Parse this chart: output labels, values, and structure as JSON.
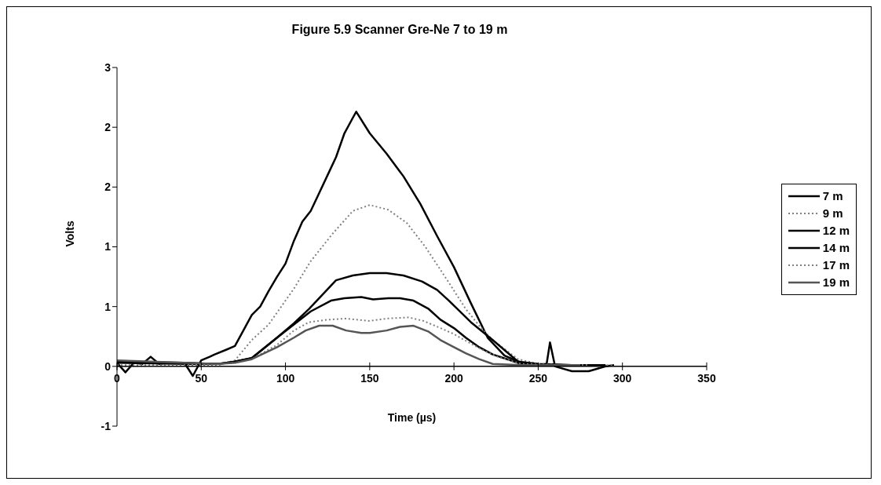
{
  "chart_data": {
    "type": "line",
    "title": "Figure 5.9 Scanner Gre-Ne 7 to 19 m",
    "xlabel": "Time (µs)",
    "ylabel": "Volts",
    "xlim": [
      0,
      350
    ],
    "xticks": [
      0,
      50,
      100,
      150,
      200,
      250,
      300,
      350
    ],
    "ylim": [
      -0.5,
      2.5
    ],
    "yticks": [
      {
        "value": -0.5,
        "label": "-1"
      },
      0,
      {
        "value": 0.5,
        "label": "1"
      },
      1,
      {
        "value": 1.5,
        "label": "2"
      },
      2,
      {
        "value": 2.5,
        "label": "3"
      }
    ],
    "grid": false,
    "legend": "right",
    "marker": "none",
    "series": [
      {
        "name": "7 m",
        "color": "#000000",
        "line_style": "solid",
        "x": [
          0,
          5,
          10,
          15,
          20,
          25,
          30,
          40,
          45,
          50,
          55,
          58,
          65,
          70,
          75,
          80,
          85,
          90,
          95,
          100,
          105,
          110,
          115,
          120,
          125,
          130,
          135,
          140,
          142,
          150,
          160,
          170,
          180,
          190,
          200,
          210,
          220,
          230,
          240,
          250,
          255,
          257,
          260,
          270,
          280,
          290,
          295
        ],
        "values": [
          0.03,
          -0.05,
          0.03,
          0.02,
          0.08,
          0.02,
          0.03,
          0.03,
          -0.08,
          0.05,
          0.08,
          0.1,
          0.14,
          0.17,
          0.3,
          0.43,
          0.5,
          0.63,
          0.75,
          0.86,
          1.05,
          1.21,
          1.3,
          1.45,
          1.6,
          1.75,
          1.95,
          2.08,
          2.13,
          1.95,
          1.78,
          1.59,
          1.36,
          1.09,
          0.83,
          0.53,
          0.24,
          0.09,
          0.03,
          0.01,
          0.02,
          0.2,
          0.0,
          -0.04,
          -0.04,
          0.0,
          0.01
        ]
      },
      {
        "name": "9 m",
        "color": "#808080",
        "line_style": "dotted",
        "x": [
          0,
          40,
          60,
          70,
          80,
          90,
          105,
          115,
          128,
          140,
          150,
          161,
          172,
          183,
          197,
          207,
          215,
          223,
          238,
          250,
          270,
          295
        ],
        "values": [
          0.01,
          0.01,
          0.01,
          0.05,
          0.22,
          0.35,
          0.65,
          0.88,
          1.11,
          1.3,
          1.35,
          1.31,
          1.2,
          1.0,
          0.7,
          0.48,
          0.34,
          0.22,
          0.06,
          0.02,
          0.01,
          0.01
        ]
      },
      {
        "name": "12 m",
        "color": "#000000",
        "line_style": "solid",
        "x": [
          0,
          40,
          60,
          70,
          80,
          95,
          105,
          114,
          122,
          130,
          140,
          150,
          160,
          170,
          181,
          190,
          197,
          210,
          223,
          238,
          250,
          270,
          290
        ],
        "values": [
          0.04,
          0.03,
          0.02,
          0.04,
          0.07,
          0.24,
          0.36,
          0.48,
          0.6,
          0.72,
          0.76,
          0.78,
          0.78,
          0.76,
          0.71,
          0.64,
          0.55,
          0.37,
          0.22,
          0.04,
          0.02,
          0.01,
          0.01
        ]
      },
      {
        "name": "14 m",
        "color": "#000000",
        "line_style": "solid",
        "x": [
          0,
          40,
          60,
          70,
          80,
          95,
          105,
          115,
          127,
          135,
          145,
          152,
          161,
          168,
          176,
          185,
          192,
          200,
          207,
          215,
          223,
          240,
          270,
          285
        ],
        "values": [
          0.03,
          0.02,
          0.02,
          0.04,
          0.07,
          0.24,
          0.35,
          0.46,
          0.55,
          0.57,
          0.58,
          0.56,
          0.57,
          0.57,
          0.55,
          0.48,
          0.39,
          0.32,
          0.24,
          0.16,
          0.1,
          0.02,
          0.01,
          0.01
        ]
      },
      {
        "name": "17 m",
        "color": "#808080",
        "line_style": "dotted",
        "x": [
          0,
          40,
          60,
          70,
          80,
          95,
          105,
          114,
          125,
          136,
          150,
          160,
          173,
          182,
          192,
          200,
          210,
          218,
          226,
          240,
          270,
          280
        ],
        "values": [
          0.0,
          0.01,
          0.02,
          0.03,
          0.06,
          0.18,
          0.3,
          0.37,
          0.39,
          0.4,
          0.38,
          0.4,
          0.41,
          0.38,
          0.32,
          0.27,
          0.19,
          0.13,
          0.08,
          0.02,
          0.01,
          0.01
        ]
      },
      {
        "name": "19 m",
        "color": "#555555",
        "line_style": "solid",
        "x": [
          0,
          40,
          60,
          70,
          80,
          95,
          105,
          112,
          120,
          128,
          136,
          145,
          150,
          160,
          168,
          176,
          185,
          192,
          200,
          207,
          215,
          223,
          240,
          270,
          275
        ],
        "values": [
          0.05,
          0.03,
          0.02,
          0.03,
          0.06,
          0.16,
          0.24,
          0.3,
          0.34,
          0.34,
          0.3,
          0.28,
          0.28,
          0.3,
          0.33,
          0.34,
          0.29,
          0.22,
          0.16,
          0.11,
          0.06,
          0.02,
          0.01,
          0.01,
          0.01
        ]
      }
    ]
  }
}
